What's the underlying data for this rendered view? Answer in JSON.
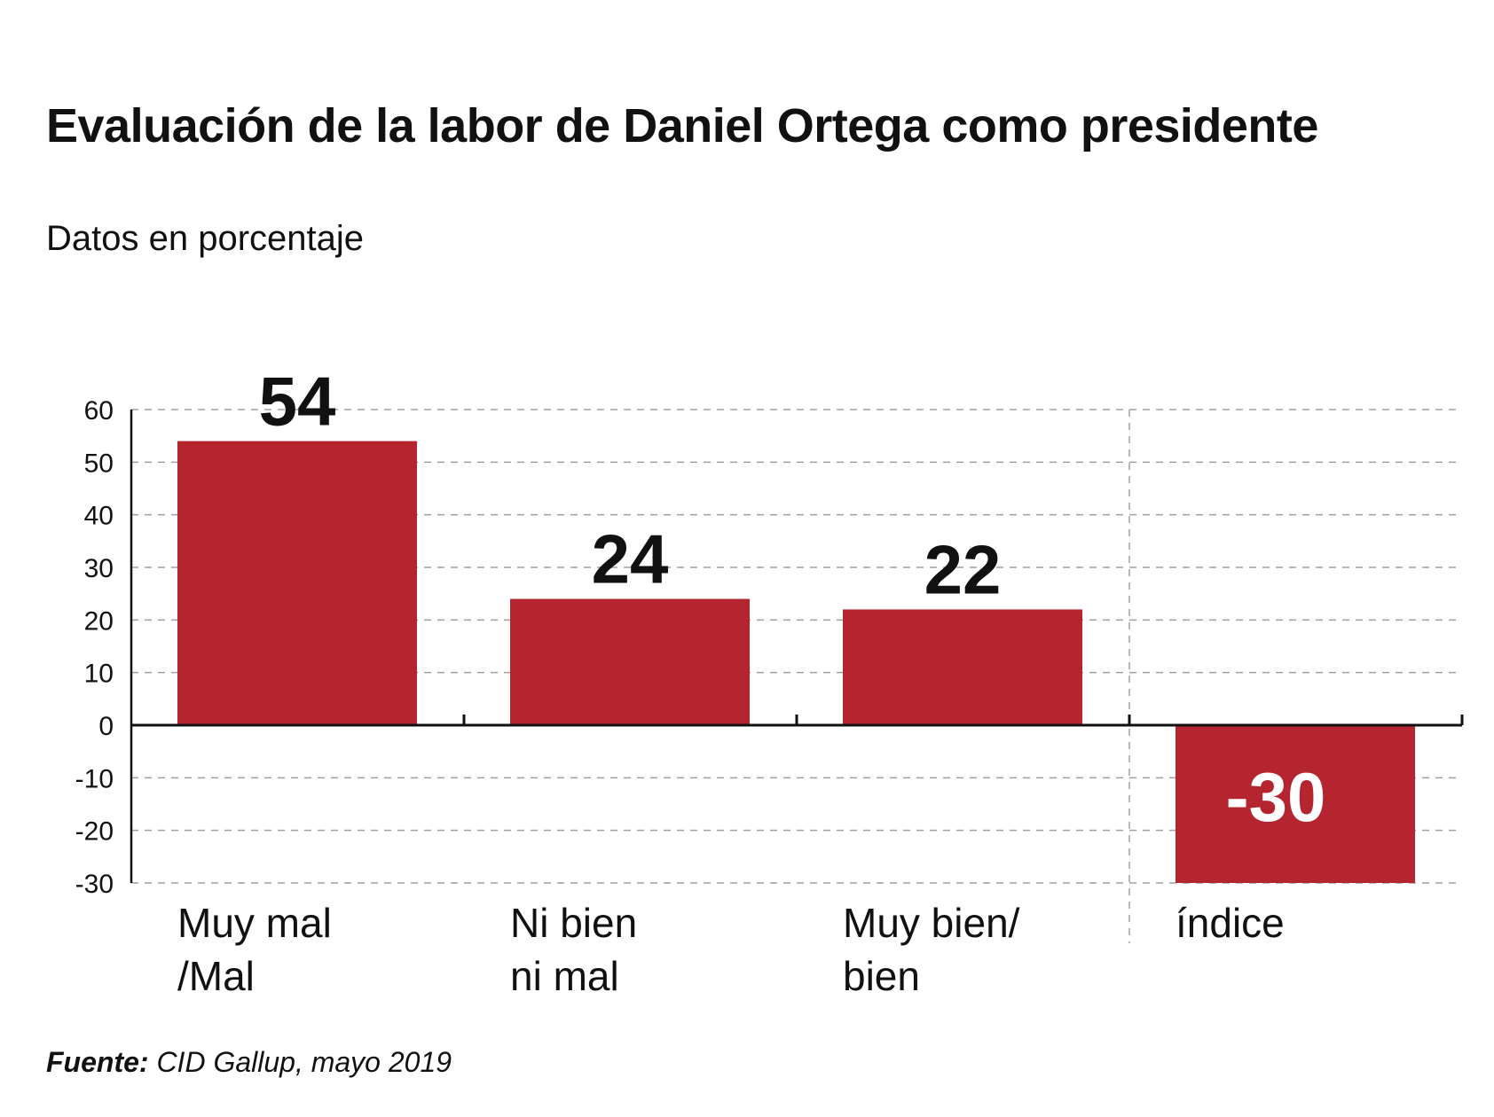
{
  "chart_data": {
    "type": "bar",
    "title": "Evaluación de la labor de Daniel Ortega como presidente",
    "subtitle": "Datos en porcentaje",
    "categories": [
      "Muy mal\n/Mal",
      "Ni bien\nni mal",
      "Muy bien/\nbien",
      "índice"
    ],
    "values": [
      54,
      24,
      22,
      -30
    ],
    "value_labels": [
      "54",
      "24",
      "22",
      "-30"
    ],
    "ylim": [
      -30,
      60
    ],
    "yticks": [
      60,
      50,
      40,
      30,
      20,
      10,
      0,
      -10,
      -20,
      -30
    ],
    "grid": true,
    "xlabel": "",
    "ylabel": ""
  },
  "source": {
    "label": "Fuente:",
    "text": "CID Gallup, mayo 2019"
  },
  "colors": {
    "bar": "#b5252f",
    "text": "#111111",
    "grid": "#a0a0a0",
    "value_on_bar": "#ffffff"
  }
}
